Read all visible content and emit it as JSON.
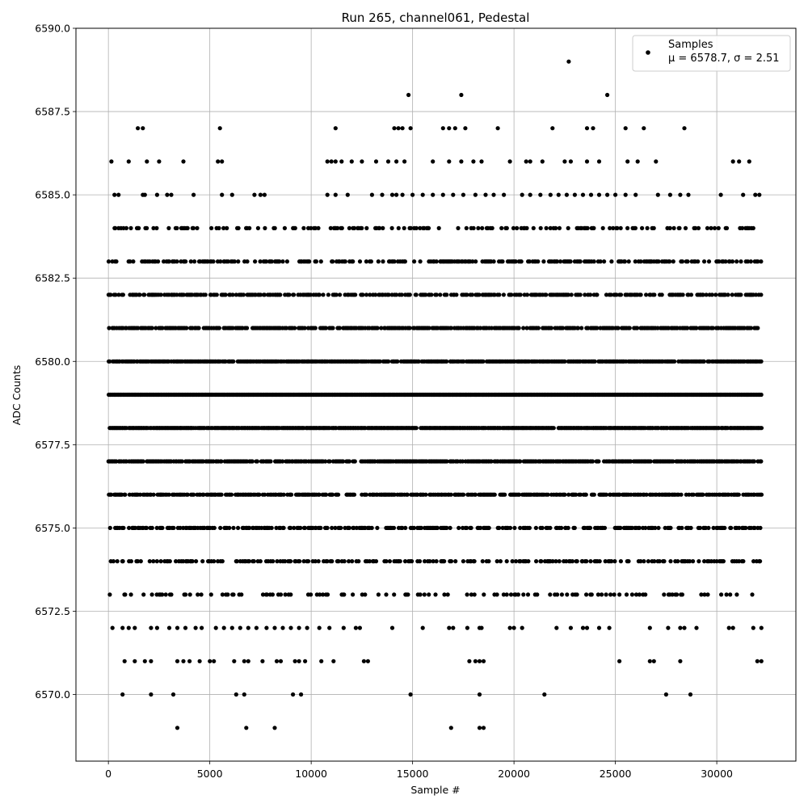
{
  "chart_data": {
    "type": "scatter",
    "title": "Run 265, channel061, Pedestal",
    "xlabel": "Sample #",
    "ylabel": "ADC Counts",
    "xlim": [
      -1600,
      33900
    ],
    "ylim": [
      6568,
      6590
    ],
    "xticks": [
      0,
      5000,
      10000,
      15000,
      20000,
      25000,
      30000
    ],
    "xtick_labels": [
      "0",
      "5000",
      "10000",
      "15000",
      "20000",
      "25000",
      "30000"
    ],
    "yticks": [
      6570.0,
      6572.5,
      6575.0,
      6577.5,
      6580.0,
      6582.5,
      6585.0,
      6587.5,
      6590.0
    ],
    "ytick_labels": [
      "6570.0",
      "6572.5",
      "6575.0",
      "6577.5",
      "6580.0",
      "6582.5",
      "6585.0",
      "6587.5",
      "6590.0"
    ],
    "grid": true,
    "marker_color": "#000000",
    "legend": {
      "placement": "top-right",
      "entries": [
        {
          "name": "Samples",
          "text": "μ = 6578.7, σ = 2.51"
        }
      ]
    },
    "series": [
      {
        "name": "Samples",
        "x_range": [
          0,
          32200
        ],
        "dense_levels": [
          6573,
          6574,
          6575,
          6576,
          6577,
          6578,
          6579,
          6580,
          6581,
          6582,
          6583,
          6584
        ],
        "sparse_points": [
          [
            150,
            6586
          ],
          [
            1000,
            6586
          ],
          [
            1900,
            6586
          ],
          [
            2500,
            6586
          ],
          [
            3700,
            6586
          ],
          [
            5400,
            6586
          ],
          [
            5600,
            6586
          ],
          [
            10800,
            6586
          ],
          [
            11000,
            6586
          ],
          [
            11200,
            6586
          ],
          [
            11500,
            6586
          ],
          [
            12000,
            6586
          ],
          [
            12500,
            6586
          ],
          [
            13200,
            6586
          ],
          [
            13800,
            6586
          ],
          [
            14200,
            6586
          ],
          [
            14600,
            6586
          ],
          [
            16000,
            6586
          ],
          [
            16800,
            6586
          ],
          [
            17400,
            6586
          ],
          [
            18000,
            6586
          ],
          [
            18400,
            6586
          ],
          [
            19800,
            6586
          ],
          [
            20600,
            6586
          ],
          [
            20800,
            6586
          ],
          [
            21400,
            6586
          ],
          [
            22500,
            6586
          ],
          [
            22800,
            6586
          ],
          [
            23600,
            6586
          ],
          [
            24200,
            6586
          ],
          [
            25600,
            6586
          ],
          [
            26100,
            6586
          ],
          [
            27000,
            6586
          ],
          [
            30800,
            6586
          ],
          [
            31100,
            6586
          ],
          [
            31600,
            6586
          ],
          [
            300,
            6585
          ],
          [
            500,
            6585
          ],
          [
            1700,
            6585
          ],
          [
            1800,
            6585
          ],
          [
            2400,
            6585
          ],
          [
            2900,
            6585
          ],
          [
            3100,
            6585
          ],
          [
            4200,
            6585
          ],
          [
            5600,
            6585
          ],
          [
            6100,
            6585
          ],
          [
            7200,
            6585
          ],
          [
            7500,
            6585
          ],
          [
            7700,
            6585
          ],
          [
            10800,
            6585
          ],
          [
            11200,
            6585
          ],
          [
            11800,
            6585
          ],
          [
            13000,
            6585
          ],
          [
            13500,
            6585
          ],
          [
            14000,
            6585
          ],
          [
            14200,
            6585
          ],
          [
            14500,
            6585
          ],
          [
            15000,
            6585
          ],
          [
            15500,
            6585
          ],
          [
            16000,
            6585
          ],
          [
            16500,
            6585
          ],
          [
            17000,
            6585
          ],
          [
            17500,
            6585
          ],
          [
            18100,
            6585
          ],
          [
            18600,
            6585
          ],
          [
            19000,
            6585
          ],
          [
            19500,
            6585
          ],
          [
            20400,
            6585
          ],
          [
            20800,
            6585
          ],
          [
            21300,
            6585
          ],
          [
            21800,
            6585
          ],
          [
            22200,
            6585
          ],
          [
            22600,
            6585
          ],
          [
            23000,
            6585
          ],
          [
            23400,
            6585
          ],
          [
            23800,
            6585
          ],
          [
            24200,
            6585
          ],
          [
            24600,
            6585
          ],
          [
            25000,
            6585
          ],
          [
            25500,
            6585
          ],
          [
            26000,
            6585
          ],
          [
            27100,
            6585
          ],
          [
            27700,
            6585
          ],
          [
            28200,
            6585
          ],
          [
            28600,
            6585
          ],
          [
            30200,
            6585
          ],
          [
            31300,
            6585
          ],
          [
            31900,
            6585
          ],
          [
            32100,
            6585
          ],
          [
            1450,
            6587
          ],
          [
            1700,
            6587
          ],
          [
            5500,
            6587
          ],
          [
            11200,
            6587
          ],
          [
            14100,
            6587
          ],
          [
            14300,
            6587
          ],
          [
            14500,
            6587
          ],
          [
            14900,
            6587
          ],
          [
            16500,
            6587
          ],
          [
            16800,
            6587
          ],
          [
            17100,
            6587
          ],
          [
            17600,
            6587
          ],
          [
            19200,
            6587
          ],
          [
            21900,
            6587
          ],
          [
            23600,
            6587
          ],
          [
            23900,
            6587
          ],
          [
            25500,
            6587
          ],
          [
            26400,
            6587
          ],
          [
            28400,
            6587
          ],
          [
            14800,
            6588
          ],
          [
            17400,
            6588
          ],
          [
            24600,
            6588
          ],
          [
            22700,
            6589
          ],
          [
            200,
            6572
          ],
          [
            700,
            6572
          ],
          [
            1000,
            6572
          ],
          [
            1300,
            6572
          ],
          [
            2100,
            6572
          ],
          [
            2400,
            6572
          ],
          [
            3000,
            6572
          ],
          [
            3400,
            6572
          ],
          [
            3800,
            6572
          ],
          [
            4300,
            6572
          ],
          [
            4600,
            6572
          ],
          [
            5300,
            6572
          ],
          [
            5700,
            6572
          ],
          [
            6100,
            6572
          ],
          [
            6500,
            6572
          ],
          [
            6900,
            6572
          ],
          [
            7300,
            6572
          ],
          [
            7800,
            6572
          ],
          [
            8200,
            6572
          ],
          [
            8600,
            6572
          ],
          [
            9000,
            6572
          ],
          [
            9400,
            6572
          ],
          [
            9800,
            6572
          ],
          [
            10400,
            6572
          ],
          [
            10900,
            6572
          ],
          [
            11600,
            6572
          ],
          [
            12200,
            6572
          ],
          [
            12400,
            6572
          ],
          [
            14000,
            6572
          ],
          [
            15500,
            6572
          ],
          [
            16800,
            6572
          ],
          [
            17000,
            6572
          ],
          [
            17700,
            6572
          ],
          [
            18300,
            6572
          ],
          [
            18400,
            6572
          ],
          [
            19800,
            6572
          ],
          [
            20000,
            6572
          ],
          [
            20400,
            6572
          ],
          [
            22100,
            6572
          ],
          [
            22800,
            6572
          ],
          [
            23400,
            6572
          ],
          [
            23600,
            6572
          ],
          [
            24200,
            6572
          ],
          [
            24700,
            6572
          ],
          [
            26700,
            6572
          ],
          [
            27600,
            6572
          ],
          [
            28200,
            6572
          ],
          [
            28400,
            6572
          ],
          [
            29000,
            6572
          ],
          [
            30600,
            6572
          ],
          [
            30800,
            6572
          ],
          [
            31800,
            6572
          ],
          [
            32200,
            6572
          ],
          [
            800,
            6571
          ],
          [
            1300,
            6571
          ],
          [
            1800,
            6571
          ],
          [
            2100,
            6571
          ],
          [
            3400,
            6571
          ],
          [
            3700,
            6571
          ],
          [
            4000,
            6571
          ],
          [
            4500,
            6571
          ],
          [
            5000,
            6571
          ],
          [
            5200,
            6571
          ],
          [
            6200,
            6571
          ],
          [
            6700,
            6571
          ],
          [
            6900,
            6571
          ],
          [
            7600,
            6571
          ],
          [
            8300,
            6571
          ],
          [
            8500,
            6571
          ],
          [
            9200,
            6571
          ],
          [
            9400,
            6571
          ],
          [
            9700,
            6571
          ],
          [
            10500,
            6571
          ],
          [
            11100,
            6571
          ],
          [
            12600,
            6571
          ],
          [
            12800,
            6571
          ],
          [
            17800,
            6571
          ],
          [
            18100,
            6571
          ],
          [
            18300,
            6571
          ],
          [
            18500,
            6571
          ],
          [
            25200,
            6571
          ],
          [
            26700,
            6571
          ],
          [
            26900,
            6571
          ],
          [
            28200,
            6571
          ],
          [
            32000,
            6571
          ],
          [
            32200,
            6571
          ],
          [
            700,
            6570
          ],
          [
            2100,
            6570
          ],
          [
            3200,
            6570
          ],
          [
            6300,
            6570
          ],
          [
            6700,
            6570
          ],
          [
            9100,
            6570
          ],
          [
            9500,
            6570
          ],
          [
            14900,
            6570
          ],
          [
            18300,
            6570
          ],
          [
            21500,
            6570
          ],
          [
            27500,
            6570
          ],
          [
            28700,
            6570
          ],
          [
            3400,
            6569
          ],
          [
            6800,
            6569
          ],
          [
            8200,
            6569
          ],
          [
            16900,
            6569
          ],
          [
            18300,
            6569
          ],
          [
            18500,
            6569
          ]
        ]
      }
    ]
  }
}
